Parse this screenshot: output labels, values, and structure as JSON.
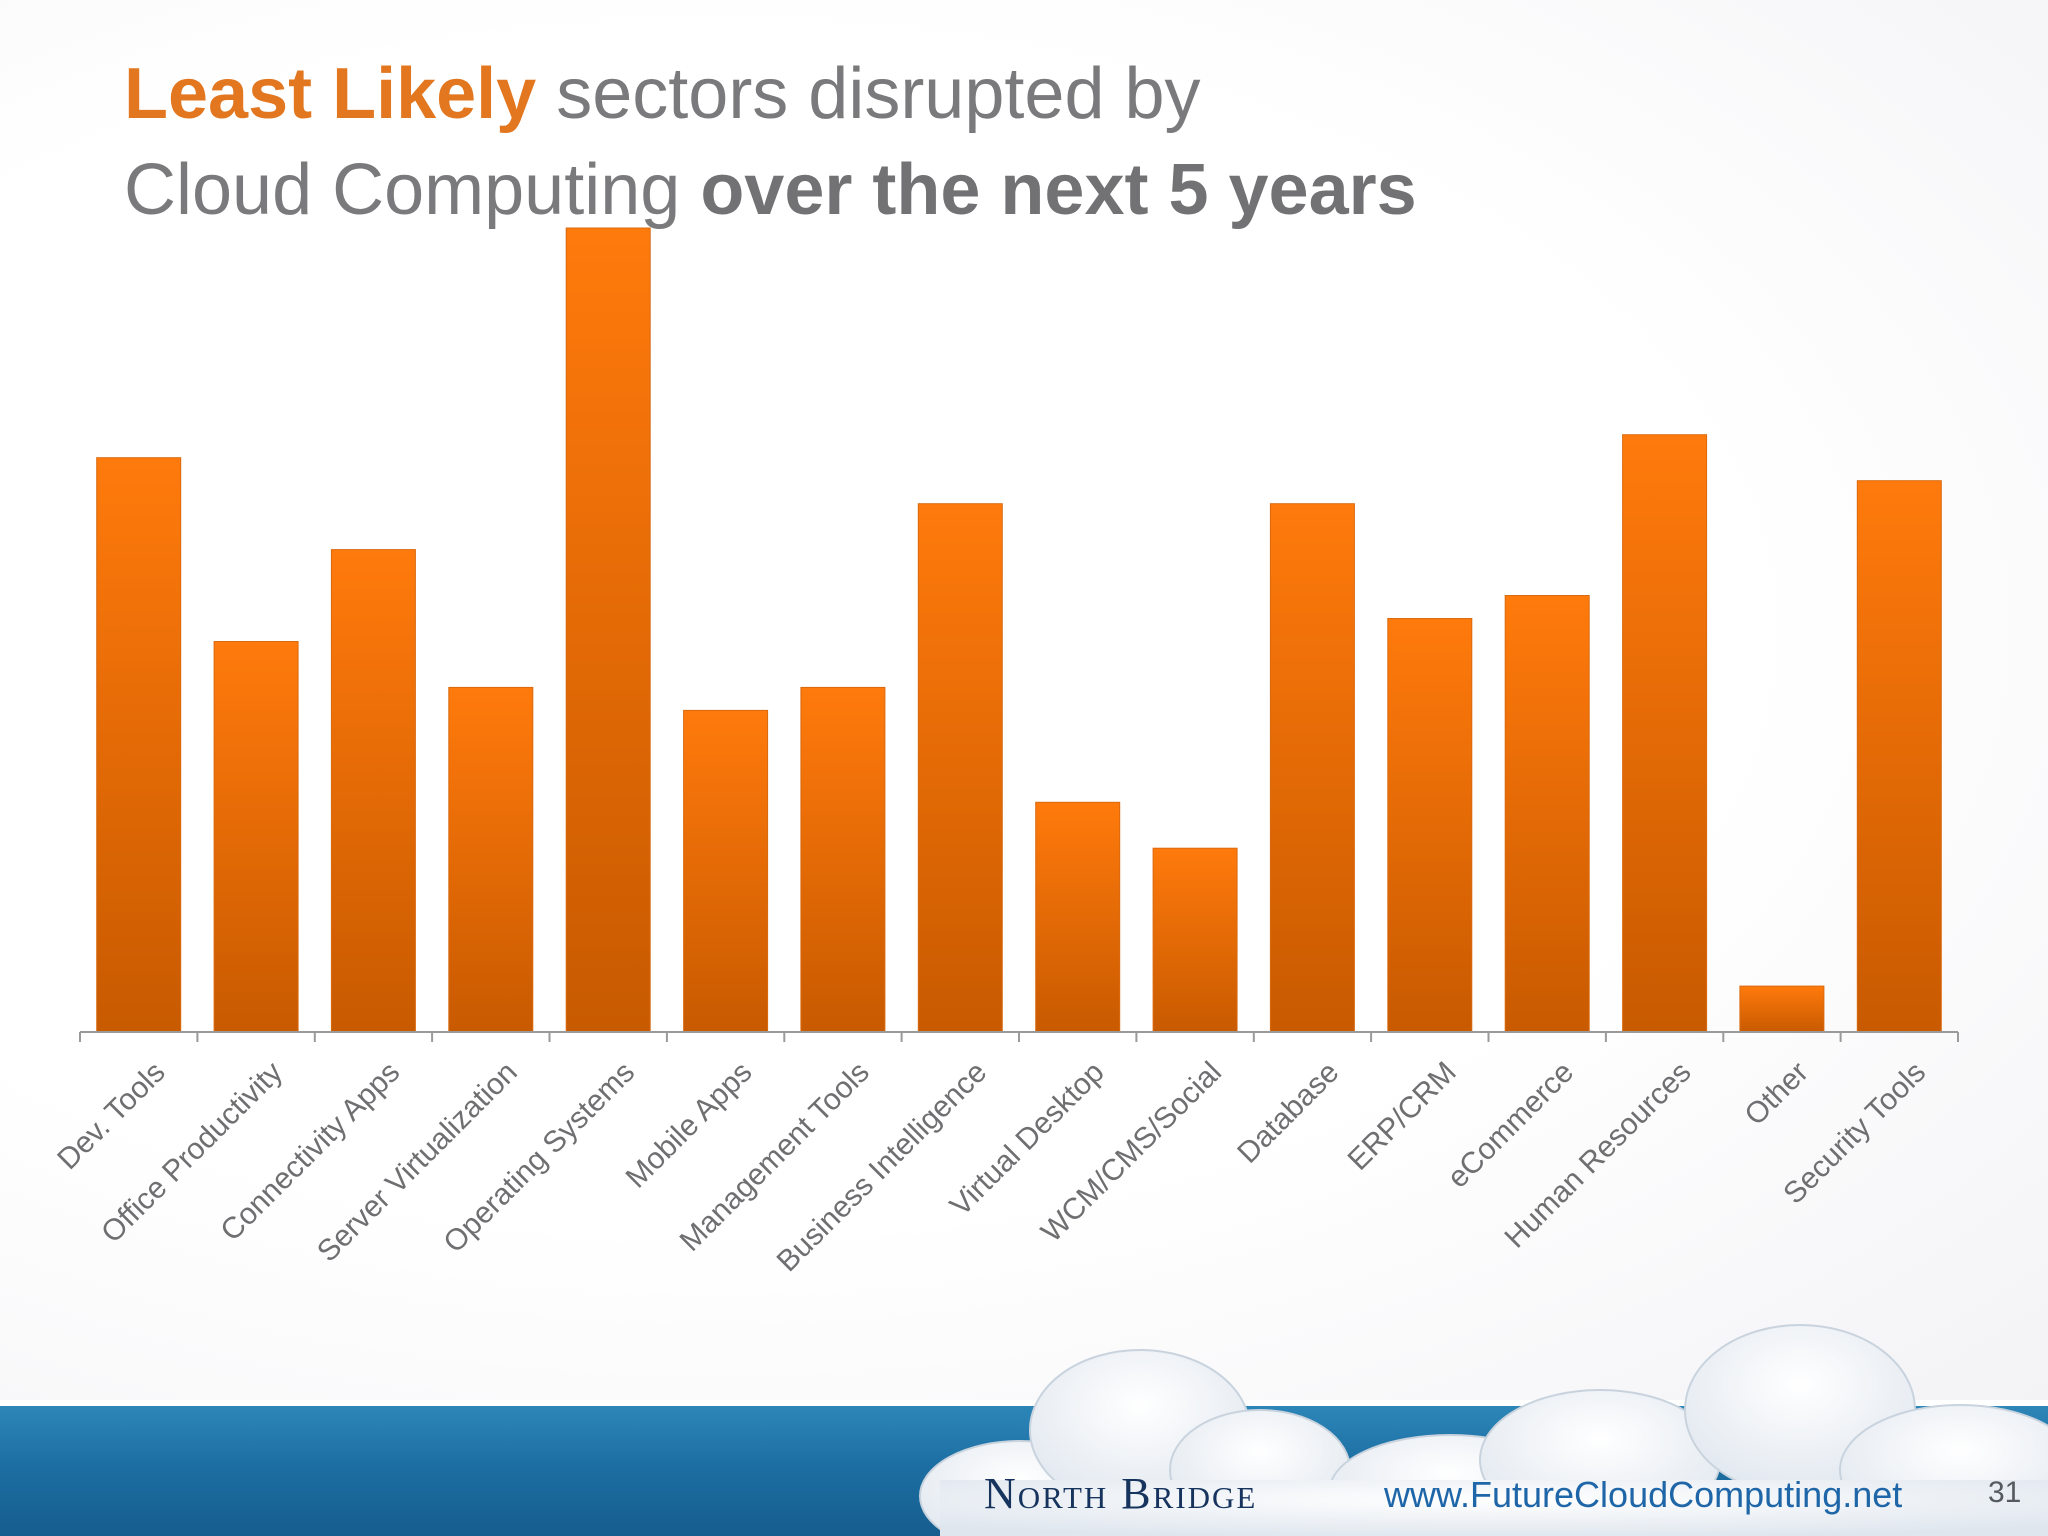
{
  "slide": {
    "title_highlight": "Least Likely",
    "title_rest_1": " sectors disrupted by",
    "title_line2_plain": "Cloud Computing ",
    "title_line2_bold": "over the next 5 years",
    "page_number": "31"
  },
  "footer": {
    "brand": "North Bridge",
    "url": "www.FutureCloudComputing.net"
  },
  "colors": {
    "accent": "#e2771f",
    "bar_top": "#ff7a0c",
    "bar_bottom": "#c85a00",
    "band": "#1d6fa3"
  },
  "chart_data": {
    "type": "bar",
    "title": "Least Likely sectors disrupted by Cloud Computing over the next 5 years",
    "xlabel": "",
    "ylabel": "",
    "ylim": [
      0,
      35
    ],
    "grid": false,
    "categories": [
      "Dev. Tools",
      "Office Productivity",
      "Connectivity Apps",
      "Server Virtualization",
      "Operating Systems",
      "Mobile Apps",
      "Management Tools",
      "Business Intelligence",
      "Virtual Desktop",
      "WCM/CMS/Social",
      "Database",
      "ERP/CRM",
      "eCommerce",
      "Human Resources",
      "Other",
      "Security Tools"
    ],
    "values": [
      25,
      17,
      21,
      15,
      35,
      14,
      15,
      23,
      10,
      8,
      23,
      18,
      19,
      26,
      2,
      24
    ]
  }
}
